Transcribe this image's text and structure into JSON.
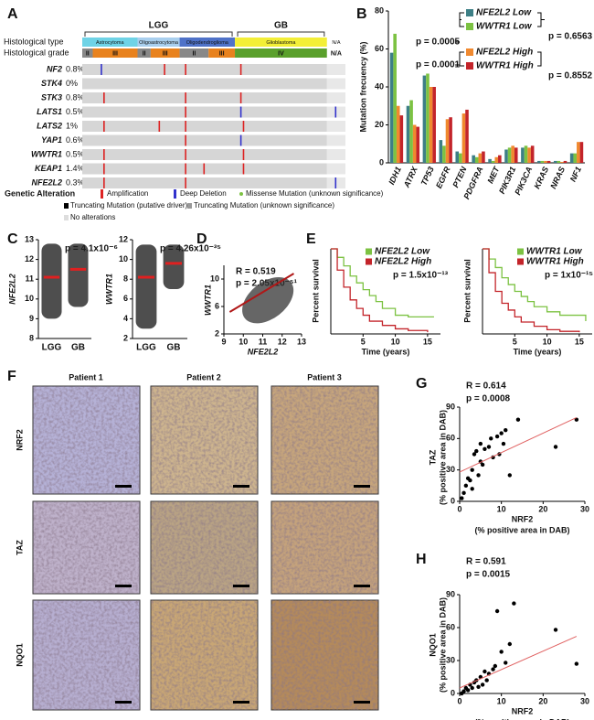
{
  "panel_labels": [
    "A",
    "B",
    "C",
    "D",
    "E",
    "F",
    "G",
    "H"
  ],
  "oncoprint": {
    "groups": [
      "LGG",
      "GB"
    ],
    "track_labels": [
      "Histological type",
      "Histological grade"
    ],
    "types": [
      "Astrocytoma",
      "Oligoastrocytoma",
      "Oligodendroglioma",
      "Glioblastoma",
      "N/A"
    ],
    "type_colors": [
      "#6fd3e6",
      "#a9cfee",
      "#4f72c8",
      "#f3ef37",
      "#ffffff"
    ],
    "grades": [
      "II",
      "III",
      "II",
      "III",
      "II",
      "III",
      "IV",
      "N/A"
    ],
    "grade_colors": [
      "#888888",
      "#e8821e",
      "#888888",
      "#e8821e",
      "#888888",
      "#e8821e",
      "#5aa02c",
      "#ffffff"
    ],
    "genes": [
      {
        "name": "NF2",
        "percent": "0.8%",
        "amplification": [
          0.31,
          0.39,
          0.6
        ],
        "deep_deletion": [
          0.07
        ]
      },
      {
        "name": "STK4",
        "percent": "0%",
        "amplification": [],
        "deep_deletion": []
      },
      {
        "name": "STK3",
        "percent": "0.8%",
        "amplification": [
          0.08,
          0.39,
          0.6
        ],
        "deep_deletion": []
      },
      {
        "name": "LATS1",
        "percent": "0.5%",
        "amplification": [
          0.39
        ],
        "deep_deletion": [
          0.6,
          0.96
        ]
      },
      {
        "name": "LATS2",
        "percent": "1%",
        "amplification": [
          0.08,
          0.29,
          0.39,
          0.61
        ],
        "deep_deletion": []
      },
      {
        "name": "YAP1",
        "percent": "0.6%",
        "amplification": [
          0.39
        ],
        "deep_deletion": [
          0.6
        ]
      },
      {
        "name": "WWTR1",
        "percent": "0.5%",
        "amplification": [
          0.08,
          0.39,
          0.61
        ],
        "deep_deletion": []
      },
      {
        "name": "KEAP1",
        "percent": "1.4%",
        "amplification": [
          0.08,
          0.39,
          0.46,
          0.61
        ],
        "deep_deletion": []
      },
      {
        "name": "NFE2L2",
        "percent": "0.3%",
        "amplification": [
          0.08,
          0.39
        ],
        "deep_deletion": [
          0.96
        ]
      }
    ],
    "legend_title": "Genetic Alteration",
    "legend_items": [
      "Amplification",
      "Deep Deletion",
      "Missense Mutation (unknown significance)",
      "Truncating Mutation (putative driver)",
      "Truncating Mutation (unknown significance)",
      "No alterations"
    ]
  },
  "chart_data": [
    {
      "type": "bar",
      "ylabel": "Mutation frecuency (%)",
      "categories": [
        "IDH1",
        "ATRX",
        "TP53",
        "EGFR",
        "PTEN",
        "PDGFRA",
        "MET",
        "PIK3R1",
        "PIK3CA",
        "KRAS",
        "NRAS",
        "NF1"
      ],
      "series": [
        {
          "name": "NFE2L2 Low",
          "color": "#3d7f86",
          "values": [
            58,
            30,
            46,
            12,
            6,
            4,
            2,
            7,
            8,
            1,
            1,
            5
          ]
        },
        {
          "name": "WWTR1 Low",
          "color": "#7cc242",
          "values": [
            68,
            33,
            47,
            9,
            5,
            3,
            1,
            8,
            9,
            1,
            1,
            5
          ]
        },
        {
          "name": "NFE2L2 High",
          "color": "#f0892f",
          "values": [
            30,
            20,
            40,
            23,
            26,
            5,
            3,
            9,
            8,
            1,
            0.5,
            11
          ]
        },
        {
          "name": "WWTR1 High",
          "color": "#c3242a",
          "values": [
            25,
            19,
            40,
            24,
            28,
            6,
            4,
            8,
            9,
            1,
            1,
            11
          ]
        }
      ],
      "ylim": [
        0,
        80
      ],
      "yticks": [
        0,
        20,
        40,
        60,
        80
      ],
      "annotations": [
        "p = 0.0005",
        "p = 0.6563",
        "p = 0.0001",
        "p = 0.8552"
      ]
    },
    {
      "type": "dot",
      "ylabel": "NFE2L2",
      "categories": [
        "LGG",
        "GB"
      ],
      "means": [
        11.1,
        11.5
      ],
      "ranges": [
        [
          9,
          12.8
        ],
        [
          9.6,
          12.8
        ]
      ],
      "ylim": [
        8,
        13
      ],
      "yticks": [
        8,
        9,
        10,
        11,
        12,
        13
      ],
      "annotations": [
        "p = 4.1x10⁻⁶"
      ]
    },
    {
      "type": "dot",
      "ylabel": "WWTR1",
      "categories": [
        "LGG",
        "GB"
      ],
      "means": [
        8.2,
        9.6
      ],
      "ranges": [
        [
          3,
          11.5
        ],
        [
          7,
          11.5
        ]
      ],
      "ylim": [
        2,
        12
      ],
      "yticks": [
        2,
        4,
        6,
        8,
        10,
        12
      ],
      "annotations": [
        "p = 4.26x10⁻³⁵"
      ]
    },
    {
      "type": "scatter",
      "xlabel": "NFE2L2",
      "ylabel": "WWTR1",
      "xlim": [
        9,
        13
      ],
      "xticks": [
        9,
        10,
        11,
        12,
        13
      ],
      "ylim": [
        2,
        12
      ],
      "yticks": [
        2,
        6,
        10
      ],
      "fit_x": [
        9.3,
        12.6
      ],
      "fit_y": [
        5.2,
        10.8
      ],
      "annotations": [
        "R = 0.519",
        "p = 2.05x10⁻⁵¹"
      ]
    },
    {
      "type": "survival",
      "ylabel": "Percent survival",
      "xlabel": "Time (years)",
      "xlim": [
        0,
        17
      ],
      "xticks": [
        5,
        10,
        15
      ],
      "ylim": [
        0,
        100
      ],
      "series": [
        {
          "name": "NFE2L2 Low",
          "color": "#7cc242",
          "x": [
            0,
            1,
            2,
            3,
            4,
            5,
            6,
            7,
            8,
            10,
            12,
            16
          ],
          "values": [
            100,
            90,
            80,
            68,
            60,
            52,
            45,
            38,
            30,
            22,
            20,
            20
          ]
        },
        {
          "name": "NFE2L2 High",
          "color": "#c3242a",
          "x": [
            0,
            1,
            2,
            3,
            4,
            5,
            6,
            8,
            10,
            12,
            15
          ],
          "values": [
            100,
            75,
            55,
            40,
            30,
            22,
            15,
            10,
            6,
            4,
            2
          ]
        }
      ],
      "annotations": [
        "p = 1.5x10⁻¹³"
      ]
    },
    {
      "type": "survival",
      "ylabel": "Percent survival",
      "xlabel": "Time (years)",
      "xlim": [
        0,
        17
      ],
      "xticks": [
        5,
        10,
        15
      ],
      "ylim": [
        0,
        100
      ],
      "series": [
        {
          "name": "WWTR1 Low",
          "color": "#7cc242",
          "x": [
            0,
            1,
            2,
            3,
            4,
            5,
            6,
            7,
            8,
            10,
            12,
            16
          ],
          "values": [
            100,
            88,
            78,
            66,
            58,
            50,
            44,
            38,
            32,
            26,
            22,
            15
          ]
        },
        {
          "name": "WWTR1 High",
          "color": "#c3242a",
          "x": [
            0,
            1,
            2,
            3,
            4,
            5,
            6,
            8,
            10,
            12,
            15
          ],
          "values": [
            100,
            72,
            50,
            36,
            28,
            20,
            14,
            9,
            5,
            3,
            2
          ]
        }
      ],
      "annotations": [
        "p = 1x10⁻¹⁵"
      ]
    },
    {
      "type": "scatter",
      "xlabel": [
        "NRF2",
        "(% positive area in DAB)"
      ],
      "ylabel": [
        "TAZ",
        "(% positive area in DAB)"
      ],
      "xlim": [
        0,
        30
      ],
      "xticks": [
        0,
        10,
        20,
        30
      ],
      "ylim": [
        0,
        90
      ],
      "yticks": [
        0,
        30,
        60,
        90
      ],
      "x": [
        0.5,
        1,
        1.5,
        2,
        2.5,
        3,
        3,
        3.5,
        4,
        4.5,
        5,
        5,
        5.5,
        6,
        7,
        7.5,
        8,
        9,
        9.5,
        10,
        10.5,
        11,
        12,
        14,
        23,
        28
      ],
      "y": [
        3,
        8,
        15,
        22,
        20,
        12,
        30,
        45,
        48,
        25,
        38,
        55,
        35,
        50,
        52,
        60,
        42,
        62,
        45,
        65,
        55,
        68,
        25,
        78,
        52,
        78
      ],
      "fit_x": [
        0,
        28
      ],
      "fit_y": [
        28,
        80
      ],
      "annotations": [
        "R = 0.614",
        "p = 0.0008"
      ]
    },
    {
      "type": "scatter",
      "xlabel": [
        "NRF2",
        "(% positive area in DAB)"
      ],
      "ylabel": [
        "NQO1",
        "(% positive area in DAB)"
      ],
      "xlim": [
        0,
        30
      ],
      "xticks": [
        0,
        10,
        20,
        30
      ],
      "ylim": [
        0,
        90
      ],
      "yticks": [
        0,
        30,
        60,
        90
      ],
      "x": [
        0.5,
        1,
        1.5,
        2,
        2.5,
        3,
        3.5,
        4,
        4.5,
        5,
        5.5,
        6,
        6.5,
        7,
        8,
        8.5,
        9,
        10,
        11,
        12,
        13,
        23,
        28
      ],
      "y": [
        0,
        2,
        5,
        3,
        8,
        5,
        10,
        12,
        6,
        15,
        8,
        20,
        12,
        18,
        22,
        25,
        75,
        38,
        28,
        45,
        82,
        58,
        27
      ],
      "fit_x": [
        0,
        28
      ],
      "fit_y": [
        5,
        52
      ],
      "annotations": [
        "R = 0.591",
        "p = 0.0015"
      ]
    }
  ],
  "histology": {
    "columns": [
      "Patient 1",
      "Patient 2",
      "Patient 3"
    ],
    "rows": [
      "NRF2",
      "TAZ",
      "NQO1"
    ]
  }
}
